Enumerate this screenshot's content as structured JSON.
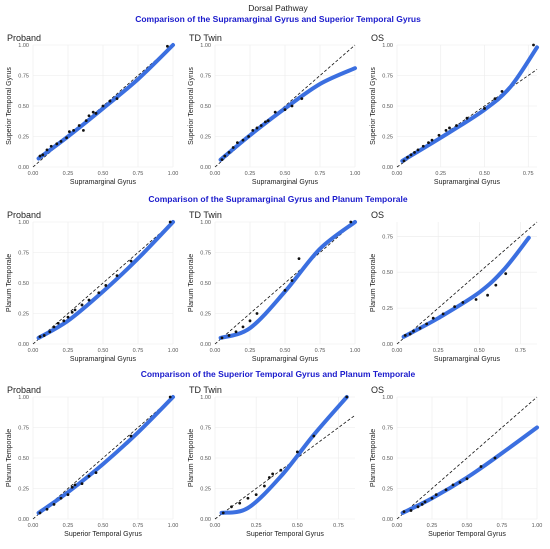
{
  "figure": {
    "title": "Dorsal Pathway",
    "sections": [
      "Comparison of the Supramarginal Gyrus and Superior Temporal Gyrus",
      "Comparison of the Supramarginal Gyrus and Planum Temporale",
      "Comparison of the Superior Temporal Gyrus and Planum Temporale"
    ],
    "colors": {
      "section_title": "#1a1acc",
      "fit_line": "#3b6fe0",
      "points": "#111111",
      "reference_line": "#111111"
    }
  },
  "chart_data": [
    {
      "type": "scatter",
      "panel": "Proband",
      "section": 0,
      "xlabel": "Supramarginal Gyrus",
      "ylabel": "Superior Temporal Gyrus",
      "xlim": [
        0,
        1
      ],
      "ylim": [
        0,
        1
      ],
      "ticks": [
        "0.00",
        "0.25",
        "0.50",
        "0.75",
        "1.00"
      ],
      "reference": "y = x",
      "points": [
        [
          0.05,
          0.09
        ],
        [
          0.07,
          0.1
        ],
        [
          0.1,
          0.14
        ],
        [
          0.13,
          0.17
        ],
        [
          0.17,
          0.19
        ],
        [
          0.2,
          0.21
        ],
        [
          0.24,
          0.24
        ],
        [
          0.26,
          0.29
        ],
        [
          0.29,
          0.3
        ],
        [
          0.33,
          0.34
        ],
        [
          0.36,
          0.3
        ],
        [
          0.38,
          0.38
        ],
        [
          0.4,
          0.42
        ],
        [
          0.43,
          0.45
        ],
        [
          0.45,
          0.44
        ],
        [
          0.5,
          0.5
        ],
        [
          0.55,
          0.54
        ],
        [
          0.6,
          0.56
        ],
        [
          0.96,
          0.99
        ]
      ],
      "fit": [
        [
          0.04,
          0.07
        ],
        [
          0.25,
          0.25
        ],
        [
          0.5,
          0.48
        ],
        [
          0.75,
          0.72
        ],
        [
          1.0,
          1.0
        ]
      ]
    },
    {
      "type": "scatter",
      "panel": "TD Twin",
      "section": 0,
      "xlabel": "Supramarginal Gyrus",
      "ylabel": "Superior Temporal Gyrus",
      "xlim": [
        0,
        1
      ],
      "ylim": [
        0,
        1
      ],
      "ticks": [
        "0.00",
        "0.25",
        "0.50",
        "0.75",
        "1.00"
      ],
      "reference": "y = x",
      "points": [
        [
          0.05,
          0.06
        ],
        [
          0.07,
          0.09
        ],
        [
          0.1,
          0.12
        ],
        [
          0.13,
          0.16
        ],
        [
          0.16,
          0.2
        ],
        [
          0.2,
          0.22
        ],
        [
          0.24,
          0.25
        ],
        [
          0.27,
          0.3
        ],
        [
          0.3,
          0.32
        ],
        [
          0.33,
          0.34
        ],
        [
          0.36,
          0.37
        ],
        [
          0.38,
          0.38
        ],
        [
          0.43,
          0.45
        ],
        [
          0.5,
          0.47
        ],
        [
          0.55,
          0.5
        ],
        [
          0.62,
          0.56
        ]
      ],
      "fit": [
        [
          0.04,
          0.06
        ],
        [
          0.25,
          0.26
        ],
        [
          0.5,
          0.48
        ],
        [
          0.75,
          0.68
        ],
        [
          1.0,
          0.81
        ]
      ]
    },
    {
      "type": "scatter",
      "panel": "OS",
      "section": 0,
      "xlabel": "Supramarginal Gyrus",
      "ylabel": "Superior Temporal Gyrus",
      "xlim": [
        0,
        0.8
      ],
      "ylim": [
        0,
        1
      ],
      "ticks_x": [
        "0.00",
        "0.25",
        "0.50",
        "0.75"
      ],
      "ticks": [
        "0.00",
        "0.25",
        "0.50",
        "0.75",
        "1.00"
      ],
      "reference": "y = x",
      "points": [
        [
          0.04,
          0.05
        ],
        [
          0.06,
          0.08
        ],
        [
          0.08,
          0.1
        ],
        [
          0.1,
          0.12
        ],
        [
          0.12,
          0.14
        ],
        [
          0.15,
          0.17
        ],
        [
          0.18,
          0.2
        ],
        [
          0.2,
          0.22
        ],
        [
          0.24,
          0.26
        ],
        [
          0.28,
          0.3
        ],
        [
          0.3,
          0.32
        ],
        [
          0.34,
          0.34
        ],
        [
          0.4,
          0.4
        ],
        [
          0.5,
          0.48
        ],
        [
          0.56,
          0.56
        ],
        [
          0.6,
          0.62
        ],
        [
          0.78,
          1.0
        ]
      ],
      "fit": [
        [
          0.03,
          0.05
        ],
        [
          0.25,
          0.24
        ],
        [
          0.5,
          0.47
        ],
        [
          0.65,
          0.66
        ],
        [
          0.8,
          0.98
        ]
      ]
    },
    {
      "type": "scatter",
      "panel": "Proband",
      "section": 1,
      "xlabel": "Supramarginal Gyrus",
      "ylabel": "Planum Temporale",
      "xlim": [
        0,
        1
      ],
      "ylim": [
        0,
        1
      ],
      "ticks": [
        "0.00",
        "0.25",
        "0.50",
        "0.75",
        "1.00"
      ],
      "reference": "y = x",
      "points": [
        [
          0.05,
          0.06
        ],
        [
          0.08,
          0.07
        ],
        [
          0.12,
          0.1
        ],
        [
          0.15,
          0.14
        ],
        [
          0.18,
          0.17
        ],
        [
          0.22,
          0.19
        ],
        [
          0.25,
          0.22
        ],
        [
          0.28,
          0.26
        ],
        [
          0.3,
          0.28
        ],
        [
          0.35,
          0.32
        ],
        [
          0.4,
          0.36
        ],
        [
          0.47,
          0.42
        ],
        [
          0.52,
          0.48
        ],
        [
          0.6,
          0.56
        ],
        [
          0.7,
          0.68
        ],
        [
          0.98,
          1.0
        ]
      ],
      "fit": [
        [
          0.04,
          0.05
        ],
        [
          0.25,
          0.19
        ],
        [
          0.5,
          0.43
        ],
        [
          0.75,
          0.7
        ],
        [
          1.0,
          1.0
        ]
      ]
    },
    {
      "type": "scatter",
      "panel": "TD Twin",
      "section": 1,
      "xlabel": "Supramarginal Gyrus",
      "ylabel": "Planum Temporale",
      "xlim": [
        0,
        1
      ],
      "ylim": [
        0,
        1
      ],
      "ticks": [
        "0.00",
        "0.25",
        "0.50",
        "0.75",
        "1.00"
      ],
      "reference": "y = x",
      "points": [
        [
          0.05,
          0.05
        ],
        [
          0.1,
          0.07
        ],
        [
          0.15,
          0.1
        ],
        [
          0.2,
          0.14
        ],
        [
          0.25,
          0.19
        ],
        [
          0.3,
          0.25
        ],
        [
          0.5,
          0.44
        ],
        [
          0.55,
          0.52
        ],
        [
          0.6,
          0.7
        ],
        [
          0.97,
          1.0
        ]
      ],
      "fit": [
        [
          0.04,
          0.05
        ],
        [
          0.25,
          0.13
        ],
        [
          0.5,
          0.43
        ],
        [
          0.75,
          0.78
        ],
        [
          1.0,
          1.0
        ]
      ]
    },
    {
      "type": "scatter",
      "panel": "OS",
      "section": 1,
      "xlabel": "Supramarginal Gyrus",
      "ylabel": "Planum Temporale",
      "xlim": [
        0,
        0.85
      ],
      "ylim": [
        0,
        0.85
      ],
      "ticks": [
        "0.00",
        "0.25",
        "0.50",
        "0.75"
      ],
      "reference": "y = x",
      "points": [
        [
          0.05,
          0.06
        ],
        [
          0.08,
          0.07
        ],
        [
          0.1,
          0.09
        ],
        [
          0.14,
          0.11
        ],
        [
          0.18,
          0.14
        ],
        [
          0.22,
          0.18
        ],
        [
          0.28,
          0.21
        ],
        [
          0.35,
          0.26
        ],
        [
          0.4,
          0.29
        ],
        [
          0.48,
          0.31
        ],
        [
          0.55,
          0.34
        ],
        [
          0.6,
          0.41
        ],
        [
          0.66,
          0.49
        ]
      ],
      "fit": [
        [
          0.04,
          0.05
        ],
        [
          0.25,
          0.18
        ],
        [
          0.5,
          0.36
        ],
        [
          0.65,
          0.52
        ],
        [
          0.8,
          0.74
        ]
      ]
    },
    {
      "type": "scatter",
      "panel": "Proband",
      "section": 2,
      "xlabel": "Superior Temporal Gyrus",
      "ylabel": "Planum Temporale",
      "xlim": [
        0,
        1
      ],
      "ylim": [
        0,
        1
      ],
      "ticks": [
        "0.00",
        "0.25",
        "0.50",
        "0.75",
        "1.00"
      ],
      "reference": "y = x",
      "points": [
        [
          0.05,
          0.05
        ],
        [
          0.1,
          0.08
        ],
        [
          0.15,
          0.12
        ],
        [
          0.2,
          0.17
        ],
        [
          0.25,
          0.2
        ],
        [
          0.28,
          0.26
        ],
        [
          0.3,
          0.28
        ],
        [
          0.35,
          0.29
        ],
        [
          0.4,
          0.35
        ],
        [
          0.45,
          0.38
        ],
        [
          0.7,
          0.68
        ],
        [
          0.98,
          1.0
        ]
      ],
      "fit": [
        [
          0.04,
          0.05
        ],
        [
          0.25,
          0.22
        ],
        [
          0.5,
          0.45
        ],
        [
          0.75,
          0.71
        ],
        [
          1.0,
          1.0
        ]
      ]
    },
    {
      "type": "scatter",
      "panel": "TD Twin",
      "section": 2,
      "xlabel": "Superior Temporal Gyrus",
      "ylabel": "Planum Temporale",
      "xlim": [
        0,
        0.85
      ],
      "ylim": [
        0,
        1
      ],
      "ticks_x": [
        "0.00",
        "0.25",
        "0.50",
        "0.75"
      ],
      "ticks": [
        "0.00",
        "0.25",
        "0.50",
        "0.75",
        "1.00"
      ],
      "reference": "y = x",
      "points": [
        [
          0.05,
          0.05
        ],
        [
          0.1,
          0.1
        ],
        [
          0.15,
          0.13
        ],
        [
          0.2,
          0.17
        ],
        [
          0.25,
          0.2
        ],
        [
          0.3,
          0.27
        ],
        [
          0.33,
          0.34
        ],
        [
          0.35,
          0.37
        ],
        [
          0.4,
          0.4
        ],
        [
          0.5,
          0.55
        ],
        [
          0.6,
          0.68
        ],
        [
          0.8,
          1.0
        ]
      ],
      "fit": [
        [
          0.04,
          0.05
        ],
        [
          0.2,
          0.09
        ],
        [
          0.4,
          0.35
        ],
        [
          0.6,
          0.69
        ],
        [
          0.8,
          1.0
        ]
      ]
    },
    {
      "type": "scatter",
      "panel": "OS",
      "section": 2,
      "xlabel": "Superior Temporal Gyrus",
      "ylabel": "Planum Temporale",
      "xlim": [
        0,
        1
      ],
      "ylim": [
        0,
        1
      ],
      "ticks": [
        "0.00",
        "0.25",
        "0.50",
        "0.75",
        "1.00"
      ],
      "reference": "y = x",
      "points": [
        [
          0.05,
          0.06
        ],
        [
          0.1,
          0.07
        ],
        [
          0.15,
          0.1
        ],
        [
          0.18,
          0.12
        ],
        [
          0.2,
          0.14
        ],
        [
          0.25,
          0.17
        ],
        [
          0.28,
          0.2
        ],
        [
          0.35,
          0.24
        ],
        [
          0.4,
          0.28
        ],
        [
          0.45,
          0.3
        ],
        [
          0.5,
          0.33
        ],
        [
          0.6,
          0.43
        ],
        [
          0.7,
          0.5
        ]
      ],
      "fit": [
        [
          0.04,
          0.05
        ],
        [
          0.25,
          0.17
        ],
        [
          0.5,
          0.34
        ],
        [
          0.75,
          0.54
        ],
        [
          1.0,
          0.75
        ]
      ]
    }
  ]
}
